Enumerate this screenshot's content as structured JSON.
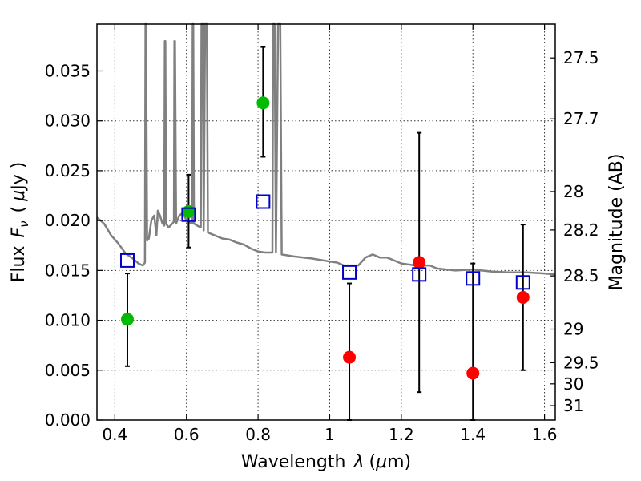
{
  "chart_data": {
    "type": "scatter",
    "xlabel": "Wavelength",
    "xlabel_math": "λ",
    "xlabel_unit_open": "(",
    "xlabel_unit_mu": "μ",
    "xlabel_unit_rest": "m)",
    "ylabel": "Flux",
    "ylabel_math": "F",
    "ylabel_sub": "ν",
    "ylabel_unit_open": "(",
    "ylabel_unit_mu": "μ",
    "ylabel_unit_rest": "Jy )",
    "y2label": "Magnitude (AB)",
    "xlim": [
      0.35,
      1.63
    ],
    "ylim": [
      0.0,
      0.0397
    ],
    "xticks": [
      0.4,
      0.6,
      0.8,
      1.0,
      1.2,
      1.4,
      1.6
    ],
    "xtick_labels": [
      "0.4",
      "0.6",
      "0.8",
      "1",
      "1.2",
      "1.4",
      "1.6"
    ],
    "yticks": [
      0.0,
      0.005,
      0.01,
      0.015,
      0.02,
      0.025,
      0.03,
      0.035
    ],
    "ytick_labels": [
      "0.000",
      "0.005",
      "0.010",
      "0.015",
      "0.020",
      "0.025",
      "0.030",
      "0.035"
    ],
    "mag_ticks": [
      {
        "label": "27.5",
        "mag": 27.5
      },
      {
        "label": "27.7",
        "mag": 27.7
      },
      {
        "label": "28",
        "mag": 28.0
      },
      {
        "label": "28.2",
        "mag": 28.2
      },
      {
        "label": "28.5",
        "mag": 28.5
      },
      {
        "label": "29",
        "mag": 29.0
      },
      {
        "label": "29.5",
        "mag": 29.5
      },
      {
        "label": "30",
        "mag": 30.0
      },
      {
        "label": "31",
        "mag": 31.0
      }
    ],
    "grid": true,
    "colors": {
      "optical_points": "#00bb00",
      "nir_points": "#ff0000",
      "model_markers": "#0000cc",
      "sed_line": "#808080",
      "error_bars": "#000000"
    },
    "series": [
      {
        "marker": "circle",
        "color": "#00bb00",
        "points": [
          {
            "x": 0.435,
            "y": 0.0101,
            "yerr_low": 0.0054,
            "yerr_high": 0.0147
          },
          {
            "x": 0.606,
            "y": 0.0209,
            "yerr_low": 0.0173,
            "yerr_high": 0.0246
          },
          {
            "x": 0.814,
            "y": 0.0318,
            "yerr_low": 0.0264,
            "yerr_high": 0.0374
          }
        ]
      },
      {
        "marker": "circle",
        "color": "#ff0000",
        "points": [
          {
            "x": 1.055,
            "y": 0.0063,
            "yerr_low": 0.0,
            "yerr_high": 0.0137
          },
          {
            "x": 1.25,
            "y": 0.0158,
            "yerr_low": 0.0028,
            "yerr_high": 0.0288
          },
          {
            "x": 1.4,
            "y": 0.0047,
            "yerr_low": 0.0,
            "yerr_high": 0.0157
          },
          {
            "x": 1.54,
            "y": 0.0123,
            "yerr_low": 0.005,
            "yerr_high": 0.0196
          }
        ]
      },
      {
        "marker": "open-square",
        "color": "#0000cc",
        "points": [
          {
            "x": 0.435,
            "y": 0.016
          },
          {
            "x": 0.606,
            "y": 0.0206
          },
          {
            "x": 0.814,
            "y": 0.0219
          },
          {
            "x": 1.055,
            "y": 0.0148
          },
          {
            "x": 1.25,
            "y": 0.0146
          },
          {
            "x": 1.4,
            "y": 0.0142
          },
          {
            "x": 1.54,
            "y": 0.0138
          }
        ]
      },
      {
        "marker": "line",
        "color": "#808080",
        "points": [
          [
            0.35,
            0.0203
          ],
          [
            0.37,
            0.0197
          ],
          [
            0.39,
            0.0185
          ],
          [
            0.41,
            0.0177
          ],
          [
            0.43,
            0.0167
          ],
          [
            0.45,
            0.0162
          ],
          [
            0.466,
            0.0157
          ],
          [
            0.478,
            0.0155
          ],
          [
            0.484,
            0.0158
          ],
          [
            0.4855,
            0.0397
          ],
          [
            0.487,
            0.0397
          ],
          [
            0.49,
            0.018
          ],
          [
            0.495,
            0.0182
          ],
          [
            0.502,
            0.02
          ],
          [
            0.51,
            0.0205
          ],
          [
            0.516,
            0.0185
          ],
          [
            0.52,
            0.021
          ],
          [
            0.526,
            0.0205
          ],
          [
            0.532,
            0.0198
          ],
          [
            0.538,
            0.0195
          ],
          [
            0.5395,
            0.038
          ],
          [
            0.541,
            0.038
          ],
          [
            0.543,
            0.0197
          ],
          [
            0.55,
            0.0193
          ],
          [
            0.558,
            0.0196
          ],
          [
            0.565,
            0.0199
          ],
          [
            0.5665,
            0.038
          ],
          [
            0.568,
            0.038
          ],
          [
            0.571,
            0.0197
          ],
          [
            0.58,
            0.0205
          ],
          [
            0.59,
            0.0208
          ],
          [
            0.6,
            0.02
          ],
          [
            0.61,
            0.0198
          ],
          [
            0.616,
            0.0197
          ],
          [
            0.6175,
            0.0397
          ],
          [
            0.619,
            0.0397
          ],
          [
            0.621,
            0.0197
          ],
          [
            0.63,
            0.0195
          ],
          [
            0.64,
            0.0193
          ],
          [
            0.642,
            0.0397
          ],
          [
            0.646,
            0.0397
          ],
          [
            0.648,
            0.019
          ],
          [
            0.652,
            0.0397
          ],
          [
            0.657,
            0.0397
          ],
          [
            0.66,
            0.0188
          ],
          [
            0.68,
            0.0185
          ],
          [
            0.7,
            0.0182
          ],
          [
            0.72,
            0.0181
          ],
          [
            0.74,
            0.0178
          ],
          [
            0.76,
            0.0176
          ],
          [
            0.78,
            0.0172
          ],
          [
            0.8,
            0.0169
          ],
          [
            0.82,
            0.0168
          ],
          [
            0.84,
            0.0168
          ],
          [
            0.842,
            0.0397
          ],
          [
            0.846,
            0.0397
          ],
          [
            0.85,
            0.0168
          ],
          [
            0.856,
            0.0397
          ],
          [
            0.862,
            0.0397
          ],
          [
            0.866,
            0.0166
          ],
          [
            0.9,
            0.0164
          ],
          [
            0.95,
            0.0162
          ],
          [
            1.0,
            0.0159
          ],
          [
            1.02,
            0.0158
          ],
          [
            1.04,
            0.0155
          ],
          [
            1.08,
            0.0155
          ],
          [
            1.1,
            0.0163
          ],
          [
            1.12,
            0.0166
          ],
          [
            1.14,
            0.0163
          ],
          [
            1.16,
            0.0163
          ],
          [
            1.18,
            0.016
          ],
          [
            1.2,
            0.0157
          ],
          [
            1.24,
            0.0155
          ],
          [
            1.28,
            0.0155
          ],
          [
            1.3,
            0.0152
          ],
          [
            1.35,
            0.015
          ],
          [
            1.4,
            0.0151
          ],
          [
            1.45,
            0.0149
          ],
          [
            1.5,
            0.0148
          ],
          [
            1.55,
            0.0148
          ],
          [
            1.6,
            0.0147
          ],
          [
            1.63,
            0.0146
          ]
        ]
      }
    ]
  }
}
